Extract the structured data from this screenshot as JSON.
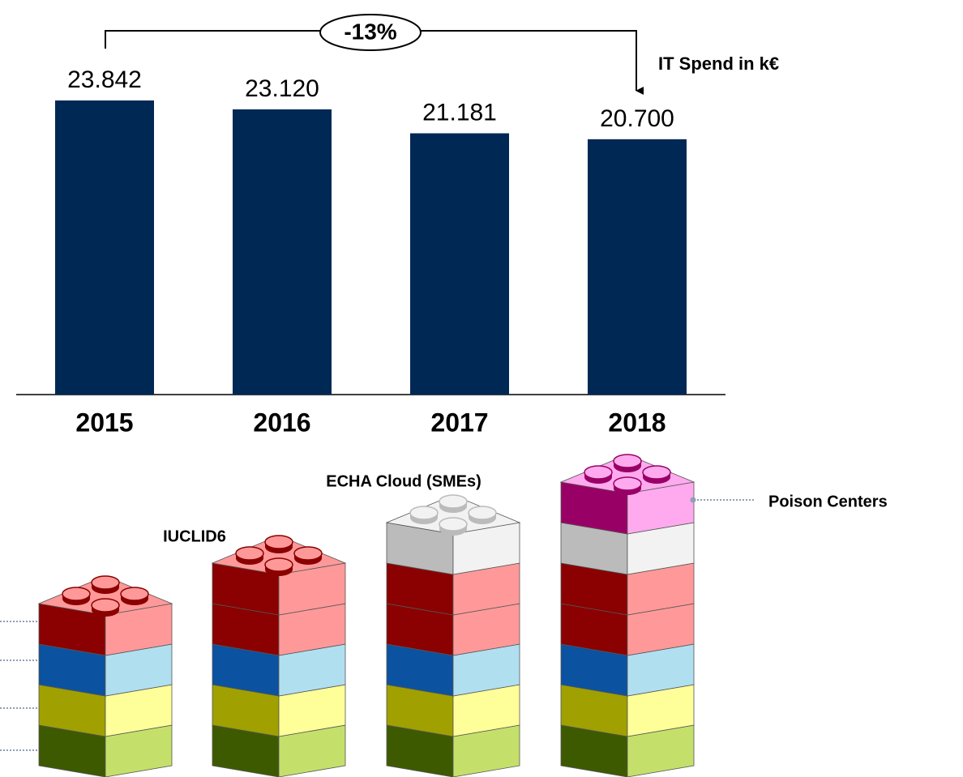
{
  "chart_data": {
    "type": "bar",
    "annotations": [
      "-13%",
      "IT Spend in k€"
    ],
    "categories": [
      "2015",
      "2016",
      "2017",
      "2018"
    ],
    "values": [
      23842,
      23120,
      21181,
      20700
    ],
    "value_labels": [
      "23.842",
      "23.120",
      "21.181",
      "20.700"
    ],
    "color": "#002855",
    "ylim": [
      0,
      24000
    ]
  },
  "bricks": {
    "labels": [
      "IUCLID6",
      "ECHA Cloud (SMEs)",
      "Poison Centers"
    ]
  }
}
